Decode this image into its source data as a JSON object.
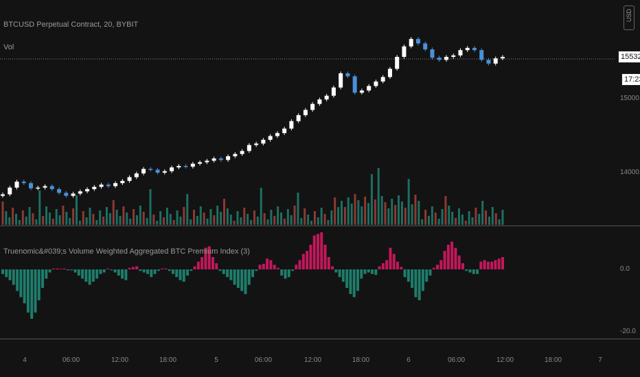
{
  "header": {
    "symbol_title": "BTCUSD Perpetual Contract, 20, BYBIT",
    "volume_label": "Vol",
    "unit_button": "USD"
  },
  "price_axis": {
    "last_price": "15532.5",
    "countdown": "17:23",
    "tick_15000": "15000.0",
    "tick_14000": "14000.0"
  },
  "indicator": {
    "title": "Truenomic&#039;s Volume Weighted Aggregated BTC Premium Index (3)",
    "tick_0": "0.0",
    "tick_neg20": "-20.0"
  },
  "time_axis": [
    "4",
    "06:00",
    "12:00",
    "18:00",
    "5",
    "06:00",
    "12:00",
    "18:00",
    "6",
    "06:00",
    "12:00",
    "18:00",
    "7"
  ],
  "colors": {
    "background": "#131313",
    "candle_up": "#ffffff",
    "candle_down": "#4a90d9",
    "vol_up": "#1e6f62",
    "vol_down": "#8b3a33",
    "premium_pos": "#c2185b",
    "premium_neg": "#1e7d6b"
  },
  "chart_data": [
    {
      "type": "line",
      "series": [
        {
          "name": "BTCUSD",
          "values": [
            13720,
            13810,
            13890,
            13870,
            13800,
            13810,
            13830,
            13790,
            13740,
            13700,
            13730,
            13760,
            13790,
            13820,
            13850,
            13830,
            13870,
            13900,
            13950,
            14000,
            14060,
            14050,
            14010,
            14030,
            14080,
            14100,
            14090,
            14130,
            14150,
            14170,
            14200,
            14180,
            14230,
            14260,
            14300,
            14380,
            14400,
            14450,
            14500,
            14540,
            14600,
            14700,
            14780,
            14850,
            14930,
            14990,
            15040,
            15150,
            15340,
            15300,
            15080,
            15110,
            15170,
            15230,
            15290,
            15400,
            15560,
            15700,
            15800,
            15740,
            15660,
            15550,
            15520,
            15560,
            15580,
            15650,
            15680,
            15650,
            15520,
            15470,
            15540,
            15560
          ]
        }
      ],
      "yticks": [
        "14000.0",
        "15000.0"
      ],
      "last": 15532.5
    },
    {
      "type": "bar",
      "series": [
        {
          "name": "premium",
          "values": [
            -1.5,
            -2.5,
            -3.5,
            -5,
            -7,
            -9,
            -11,
            -14,
            -16,
            -14,
            -10,
            -6,
            -3,
            -1,
            0.3,
            0.3,
            0.2,
            0.3,
            -0.3,
            -0.3,
            -1,
            -2,
            -3,
            -4,
            -5,
            -4,
            -3,
            -1.5,
            -1,
            0.3,
            -0.3,
            -1,
            -2,
            -3,
            -3.5,
            0.5,
            0.8,
            1,
            -0.5,
            -1,
            -1.5,
            -2.5,
            -1.5,
            -0.5,
            0.3,
            0.3,
            -0.5,
            -1.5,
            -2.5,
            -3.5,
            -4,
            -2,
            -0.5,
            1,
            2.5,
            4,
            7,
            7.5,
            4,
            2,
            -0.5,
            -1.5,
            -2.5,
            -3.5,
            -5,
            -6,
            -7,
            -8,
            -5,
            -2.5,
            -0.5,
            1.5,
            1.8,
            3.5,
            3,
            1.5,
            0.5,
            -2,
            -3,
            -2.5,
            -0.5,
            1.5,
            3,
            5,
            6,
            8,
            11,
            11.5,
            12,
            8,
            4,
            1,
            -1,
            -2.5,
            -4,
            -6,
            -8,
            -9,
            -7,
            -3,
            -1.5,
            -1,
            -1.5,
            -1.8,
            1,
            2,
            3,
            7,
            5,
            2.5,
            0.8,
            -2.5,
            -4,
            -6,
            -9,
            -10,
            -7,
            -4,
            -2,
            0.5,
            1.5,
            3,
            6,
            8,
            9,
            7,
            4.5,
            2,
            -0.5,
            -1,
            -1.5,
            -1.5,
            2.5,
            3,
            2.5,
            2.5,
            3,
            3.5,
            4
          ]
        }
      ],
      "yticks": [
        "0.0",
        "-20.0"
      ],
      "ylim": [
        -23,
        14
      ]
    }
  ]
}
